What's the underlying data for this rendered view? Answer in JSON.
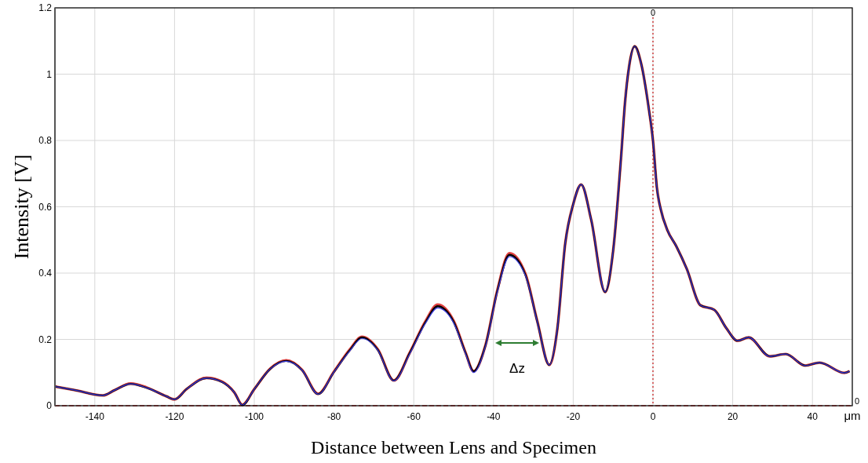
{
  "chart_data": {
    "type": "line",
    "xlabel": "Distance between Lens and Specimen",
    "ylabel": "Intensity [V]",
    "xlim": [
      -150,
      50
    ],
    "ylim": [
      0,
      1.2
    ],
    "xticks": [
      -140,
      -120,
      -100,
      -80,
      -60,
      -40,
      -20,
      0,
      20,
      40,
      {
        "value": 50,
        "label": "μm"
      }
    ],
    "yticks": [
      0,
      {
        "value": 0.2,
        "label": "0.2"
      },
      {
        "value": 0.4,
        "label": "0.4"
      },
      {
        "value": 0.6,
        "label": "0.6"
      },
      {
        "value": 0.8,
        "label": "0.8"
      },
      1,
      1.2
    ],
    "grid": true,
    "line_style": "solid",
    "marker": "none",
    "x": [
      -150,
      -145,
      -138,
      -135,
      -131,
      -127,
      -122,
      -120,
      -117,
      -112,
      -108,
      -105,
      -103,
      -100,
      -96,
      -92,
      -88,
      -84,
      -80,
      -76,
      -73,
      -69,
      -65,
      -61,
      -57,
      -54,
      -50,
      -47,
      -45,
      -42,
      -39,
      -36,
      -32,
      -29,
      -26,
      -24,
      -22,
      -20,
      -18,
      -15.5,
      -12,
      -10,
      -8,
      -7,
      -6,
      -4.6,
      -3,
      -1,
      0,
      1,
      2,
      3.6,
      5.9,
      8.5,
      11.9,
      15.4,
      18.4,
      21.2,
      24,
      29.3,
      33.3,
      38.2,
      41.8,
      48,
      49.3
    ],
    "series": [
      {
        "color": "#e04040",
        "values": [
          0.058,
          0.047,
          0.031,
          0.047,
          0.067,
          0.055,
          0.028,
          0.019,
          0.05,
          0.084,
          0.072,
          0.04,
          0.003,
          0.05,
          0.112,
          0.137,
          0.108,
          0.036,
          0.103,
          0.17,
          0.208,
          0.17,
          0.076,
          0.16,
          0.256,
          0.305,
          0.256,
          0.16,
          0.104,
          0.183,
          0.35,
          0.46,
          0.398,
          0.254,
          0.123,
          0.23,
          0.49,
          0.608,
          0.667,
          0.561,
          0.343,
          0.466,
          0.75,
          0.916,
          1.022,
          1.084,
          1.034,
          0.892,
          0.8,
          0.656,
          0.59,
          0.53,
          0.48,
          0.412,
          0.303,
          0.289,
          0.234,
          0.196,
          0.206,
          0.149,
          0.156,
          0.121,
          0.13,
          0.099,
          0.104
        ]
      },
      {
        "color": "#000000",
        "values": [
          0.058,
          0.047,
          0.031,
          0.047,
          0.066,
          0.054,
          0.028,
          0.019,
          0.05,
          0.083,
          0.071,
          0.04,
          0.002,
          0.05,
          0.111,
          0.135,
          0.107,
          0.035,
          0.102,
          0.168,
          0.206,
          0.168,
          0.076,
          0.159,
          0.253,
          0.3,
          0.253,
          0.159,
          0.104,
          0.182,
          0.348,
          0.455,
          0.395,
          0.253,
          0.123,
          0.23,
          0.49,
          0.608,
          0.667,
          0.561,
          0.343,
          0.466,
          0.75,
          0.916,
          1.022,
          1.084,
          1.034,
          0.892,
          0.8,
          0.656,
          0.59,
          0.53,
          0.48,
          0.412,
          0.303,
          0.289,
          0.234,
          0.196,
          0.206,
          0.149,
          0.156,
          0.121,
          0.13,
          0.099,
          0.104
        ]
      },
      {
        "color": "#3a3adc",
        "values": [
          0.058,
          0.047,
          0.031,
          0.047,
          0.066,
          0.054,
          0.028,
          0.019,
          0.05,
          0.083,
          0.071,
          0.04,
          0.002,
          0.05,
          0.111,
          0.134,
          0.107,
          0.035,
          0.102,
          0.166,
          0.203,
          0.167,
          0.075,
          0.157,
          0.25,
          0.295,
          0.25,
          0.157,
          0.1,
          0.18,
          0.345,
          0.45,
          0.393,
          0.252,
          0.123,
          0.23,
          0.49,
          0.608,
          0.667,
          0.561,
          0.343,
          0.466,
          0.75,
          0.916,
          1.022,
          1.084,
          1.034,
          0.892,
          0.8,
          0.656,
          0.59,
          0.53,
          0.48,
          0.412,
          0.303,
          0.289,
          0.234,
          0.196,
          0.206,
          0.149,
          0.156,
          0.121,
          0.13,
          0.099,
          0.104
        ]
      }
    ],
    "ref_lines": [
      {
        "axis": "x",
        "value": 0,
        "label": "0",
        "color": "#d04040",
        "line_style": "dotted"
      },
      {
        "axis": "y",
        "value": 0,
        "label": "0",
        "color": "#d04040",
        "line_style": "dashed"
      }
    ],
    "annotations": [
      "Δz"
    ]
  }
}
